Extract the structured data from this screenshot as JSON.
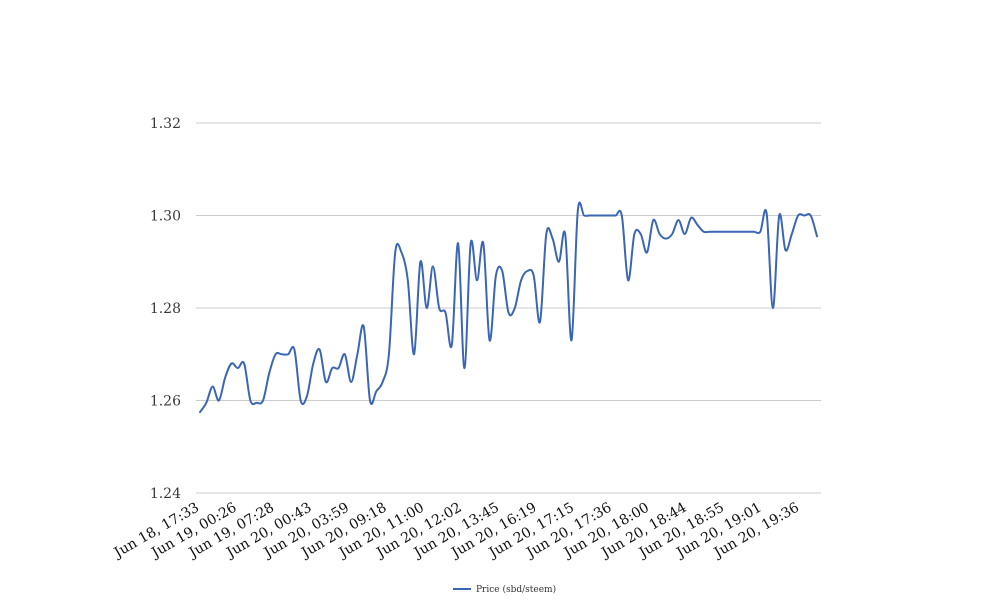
{
  "chart_data": {
    "type": "line",
    "title": "",
    "xlabel": "",
    "ylabel": "",
    "ylim": [
      1.24,
      1.32
    ],
    "yticks": [
      "1.24",
      "1.26",
      "1.28",
      "1.30",
      "1.32"
    ],
    "grid": true,
    "legend_placement": "bottom",
    "x_tick_labels": [
      "Jun 18, 17:33",
      "Jun 19, 00:26",
      "Jun 19, 07:28",
      "Jun 20, 00:43",
      "Jun 20, 03:59",
      "Jun 20, 09:18",
      "Jun 20, 11:00",
      "Jun 20, 12:02",
      "Jun 20, 13:45",
      "Jun 20, 16:19",
      "Jun 20, 17:15",
      "Jun 20, 17:36",
      "Jun 20, 18:00",
      "Jun 20, 18:44",
      "Jun 20, 18:55",
      "Jun 20, 19:01",
      "Jun 20, 19:36"
    ],
    "series": [
      {
        "name": "Price (sbd/steem)",
        "color": "#3a66b5",
        "values": [
          1.2575,
          1.2595,
          1.263,
          1.26,
          1.265,
          1.268,
          1.267,
          1.268,
          1.26,
          1.2595,
          1.26,
          1.266,
          1.27,
          1.27,
          1.27,
          1.271,
          1.26,
          1.261,
          1.268,
          1.271,
          1.264,
          1.267,
          1.267,
          1.27,
          1.264,
          1.27,
          1.276,
          1.26,
          1.262,
          1.264,
          1.27,
          1.292,
          1.292,
          1.286,
          1.27,
          1.29,
          1.28,
          1.289,
          1.28,
          1.279,
          1.272,
          1.294,
          1.267,
          1.294,
          1.286,
          1.294,
          1.273,
          1.287,
          1.288,
          1.279,
          1.28,
          1.286,
          1.288,
          1.287,
          1.277,
          1.296,
          1.295,
          1.29,
          1.296,
          1.273,
          1.301,
          1.3,
          1.3,
          1.3,
          1.3,
          1.3,
          1.3,
          1.3,
          1.286,
          1.296,
          1.296,
          1.292,
          1.299,
          1.296,
          1.295,
          1.296,
          1.299,
          1.296,
          1.2995,
          1.298,
          1.2965,
          1.2965,
          1.2965,
          1.2965,
          1.2965,
          1.2965,
          1.2965,
          1.2965,
          1.2965,
          1.2965,
          1.3005,
          1.28,
          1.3,
          1.2925,
          1.296,
          1.3,
          1.3,
          1.3,
          1.2955
        ]
      }
    ]
  }
}
